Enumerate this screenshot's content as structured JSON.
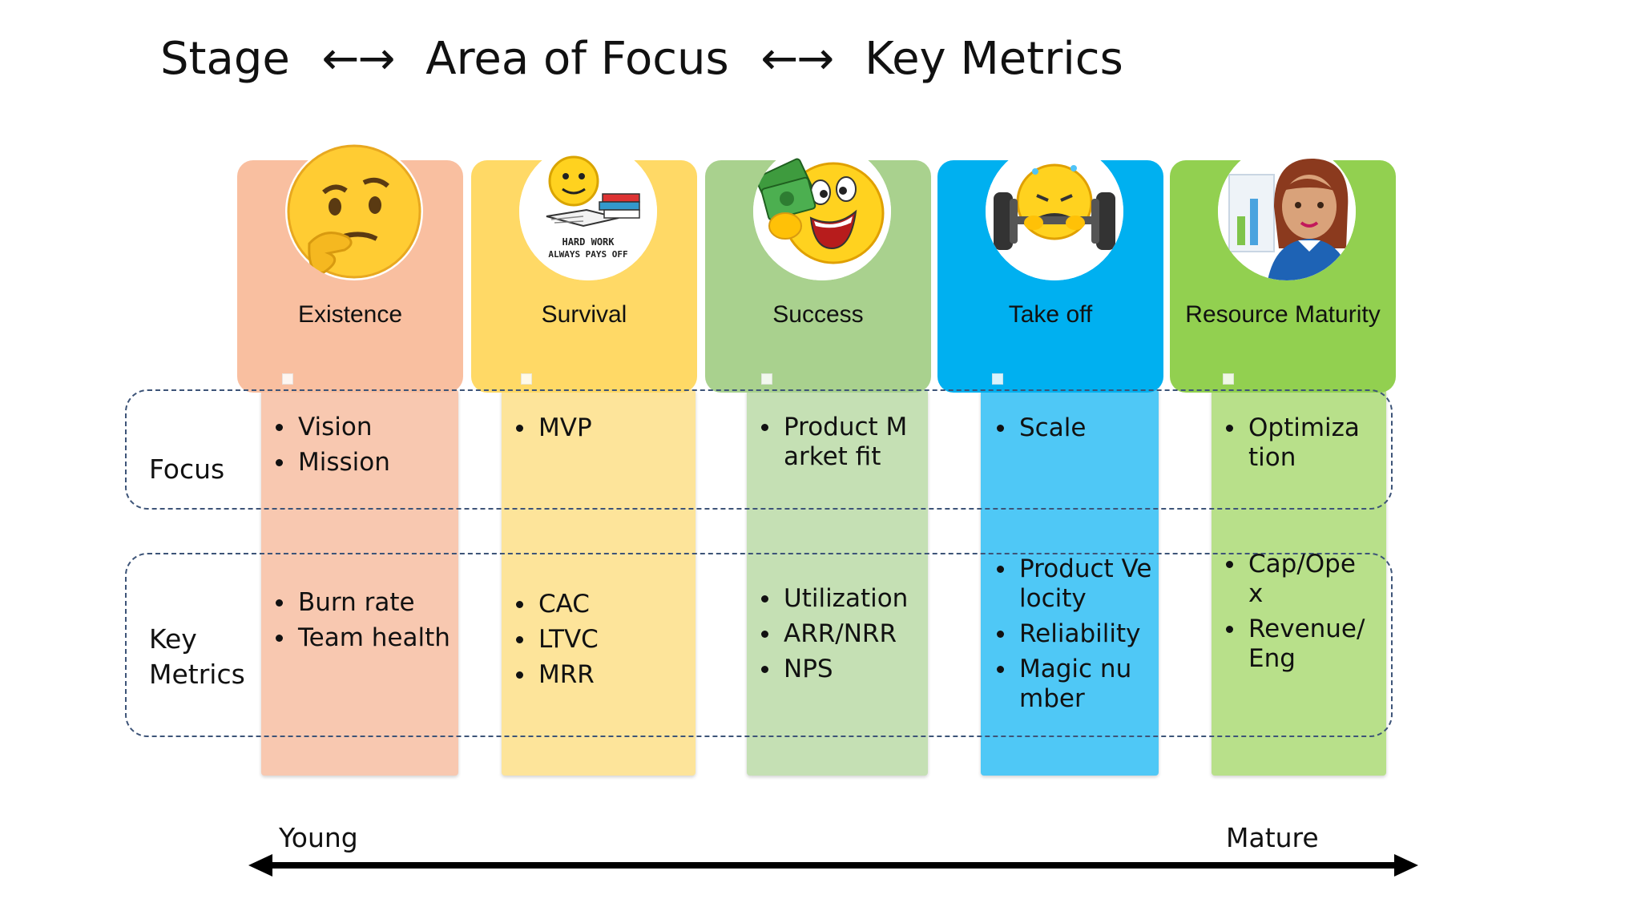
{
  "title": {
    "stage": "Stage",
    "focus": "Area of Focus",
    "metrics": "Key Metrics",
    "arrow": "←→"
  },
  "rows": {
    "focus_label": "Focus",
    "metrics_label_line1": "Key",
    "metrics_label_line2": "Metrics"
  },
  "stages": [
    {
      "name": "Existence",
      "color": "#f9bfa0",
      "column_color": "#f8c8b0",
      "focus": [
        "Vision",
        "Mission"
      ],
      "metrics": [
        "Burn rate",
        "Team health"
      ],
      "icon": "thinking-face-icon"
    },
    {
      "name": "Survival",
      "color": "#ffd966",
      "column_color": "#fde49a",
      "focus": [
        "MVP"
      ],
      "metrics": [
        "CAC",
        "LTVC",
        "MRR"
      ],
      "icon": "hard-work-emoji-icon",
      "icon_text_line1": "HARD WORK",
      "icon_text_line2": "ALWAYS PAYS OFF"
    },
    {
      "name": "Success",
      "color": "#a9d18e",
      "column_color": "#c5e0b4",
      "focus": [
        "Product Market fit"
      ],
      "metrics": [
        "Utilization",
        "ARR/NRR",
        "NPS"
      ],
      "icon": "money-grin-emoji-icon"
    },
    {
      "name": "Take off",
      "color": "#00b0f0",
      "column_color": "#4fc8f6",
      "focus": [
        "Scale"
      ],
      "metrics": [
        "Product Velocity",
        "Reliability",
        "Magic number"
      ],
      "icon": "weightlifting-emoji-icon"
    },
    {
      "name": "Resource Maturity",
      "color": "#92d050",
      "column_color": "#b8e08a",
      "focus": [
        "Optimization"
      ],
      "metrics": [
        "Cap/Opex",
        "Revenue/Eng"
      ],
      "icon": "analyst-woman-icon"
    }
  ],
  "axis": {
    "left": "Young",
    "right": "Mature"
  }
}
